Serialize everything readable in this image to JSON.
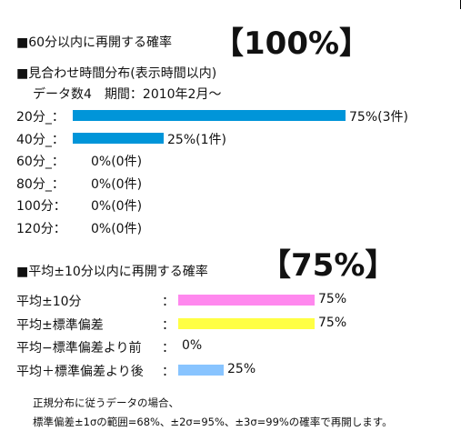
{
  "section1": {
    "header": "■60分以内に再開する確率",
    "big": "【100%】"
  },
  "section2": {
    "header": "■見合わせ時間分布(表示時間以内)",
    "subheader": "データ数4　期間：2010年2月〜",
    "rows": [
      {
        "label": "20分_：",
        "fraction": 0.75,
        "value": "75%(3件)"
      },
      {
        "label": "40分_：",
        "fraction": 0.25,
        "value": "25%(1件)"
      },
      {
        "label": "60分_：",
        "fraction": 0,
        "value": "0%(0件)"
      },
      {
        "label": "80分_：",
        "fraction": 0,
        "value": "0%(0件)"
      },
      {
        "label": "100分：",
        "fraction": 0,
        "value": "0%(0件)"
      },
      {
        "label": "120分：",
        "fraction": 0,
        "value": "0%(0件)"
      }
    ],
    "bar_color": "#0095d9"
  },
  "section3": {
    "header": "■平均±10分以内に再開する確率",
    "big": "【75%】",
    "rows": [
      {
        "label": "平均±10分",
        "colon": "：",
        "fraction": 0.75,
        "value": "75%",
        "color": "#ff88ee"
      },
      {
        "label": "平均±標準偏差",
        "colon": "：",
        "fraction": 0.75,
        "value": "75%",
        "color": "#ffff44"
      },
      {
        "label": "平均−標準偏差より前",
        "colon": "：",
        "fraction": 0,
        "value": "0%",
        "color": "#88c4ff"
      },
      {
        "label": "平均＋標準偏差より後",
        "colon": "：",
        "fraction": 0.25,
        "value": "25%",
        "color": "#88c4ff"
      }
    ]
  },
  "notes": {
    "line1": "正規分布に従うデータの場合、",
    "line2": "標準偏差±1σの範囲=68%、±2σ=95%、±3σ=99%の確率で再開します。"
  }
}
